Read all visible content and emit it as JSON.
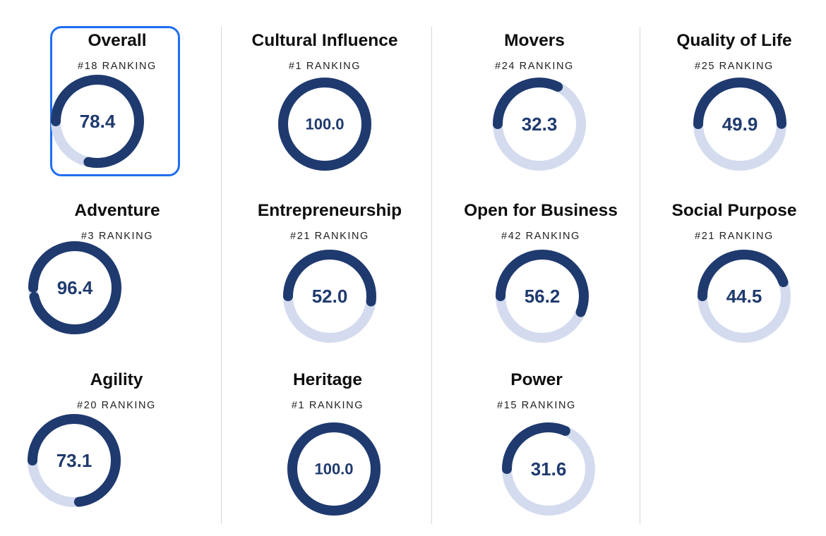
{
  "colors": {
    "ring_fill": "#1f3a6e",
    "ring_track": "#d4dbef",
    "score_text": "#1f3a6e",
    "selected_border": "#1f6ef0"
  },
  "selected": "overall",
  "cards": [
    {
      "id": "overall",
      "title": "Overall",
      "ranking": "#18 RANKING",
      "score": "78.4",
      "value": 78.4
    },
    {
      "id": "adventure",
      "title": "Adventure",
      "ranking": "#3 RANKING",
      "score": "96.4",
      "value": 96.4
    },
    {
      "id": "agility",
      "title": "Agility",
      "ranking": "#20 RANKING",
      "score": "73.1",
      "value": 73.1
    },
    {
      "id": "cultural-influence",
      "title": "Cultural Influence",
      "ranking": "#1 RANKING",
      "score": "100.0",
      "value": 100.0
    },
    {
      "id": "entrepreneurship",
      "title": "Entrepreneurship",
      "ranking": "#21 RANKING",
      "score": "52.0",
      "value": 52.0
    },
    {
      "id": "heritage",
      "title": "Heritage",
      "ranking": "#1 RANKING",
      "score": "100.0",
      "value": 100.0
    },
    {
      "id": "movers",
      "title": "Movers",
      "ranking": "#24 RANKING",
      "score": "32.3",
      "value": 32.3
    },
    {
      "id": "open-for-business",
      "title": "Open for Business",
      "ranking": "#42 RANKING",
      "score": "56.2",
      "value": 56.2
    },
    {
      "id": "power",
      "title": "Power",
      "ranking": "#15 RANKING",
      "score": "31.6",
      "value": 31.6
    },
    {
      "id": "quality-of-life",
      "title": "Quality of Life",
      "ranking": "#25 RANKING",
      "score": "49.9",
      "value": 49.9
    },
    {
      "id": "social-purpose",
      "title": "Social Purpose",
      "ranking": "#21 RANKING",
      "score": "44.5",
      "value": 44.5
    }
  ]
}
